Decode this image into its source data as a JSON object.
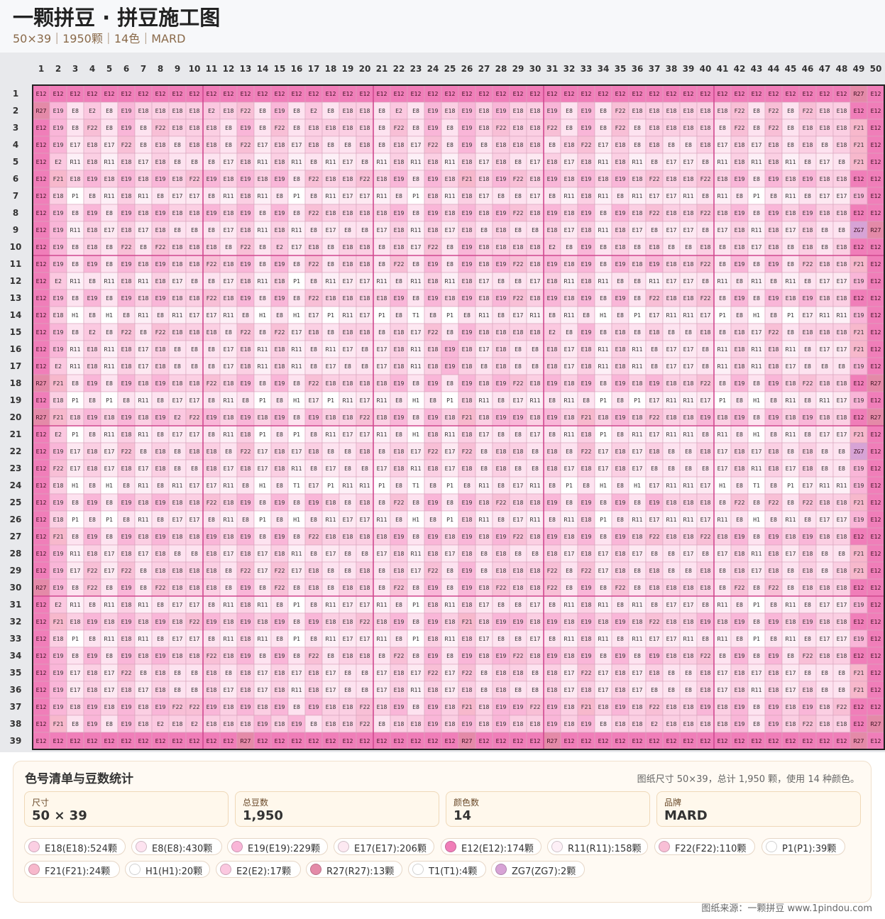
{
  "header": {
    "title": "一颗拼豆 · 拼豆施工图",
    "subtitle": "50×39｜1950颗｜14色｜MARD"
  },
  "grid": {
    "cols": 50,
    "rows": 39,
    "code_colors": {
      "E12": "#f07eb9",
      "E18": "#fbcfe3",
      "E8": "#fde3f0",
      "E19": "#f9b6d8",
      "E17": "#fde9f2",
      "R11": "#fdf0f7",
      "F22": "#f8bfd6",
      "P1": "#ffffff",
      "F21": "#f7b8cc",
      "H1": "#ffffff",
      "E2": "#fbc8e0",
      "R27": "#e48aa8",
      "T1": "#ffffff",
      "ZG7": "#d7a3d6"
    },
    "cells": [
      "E12 E12 E12 E12 E12 E12 E12 E12 E12 E12 E12 E12 E12 E12 E12 E12 E12 E12 E12 E12 E12 E12 E12 E12 E12 E12 E12 E12 E12 E12 E12 E12 E12 E12 E12 E12 E12 E12 E12 E12 E12 E12 E12 E12 E12 E12 E12 E12 R27 E12",
      "R27 E19 E8 E2 E8 E19 E18 E18 E18 E18 E2 E18 F22 E8 E19 E8 E2 E8 E18 E18 E8 E2 E8 E19 E18 E19 E18 E19 E18 E18 E19 E8 E19 E8 F22 E18 E18 E18 E18 E18 E18 F22 E8 F22 E8 F22 E18 E18 E12 E12",
      "E12 E19 E8 F22 E8 E19 E8 F22 E18 E18 E18 E8 E19 E8 F22 E8 E18 E18 E18 E18 E8 F22 E8 E19 E8 E19 E18 F22 E18 E18 F22 E8 E19 E8 F22 E8 E18 E18 E18 E18 E8 F22 E8 F22 E8 E18 E18 E18 F21 E12",
      "E12 E19 E17 E18 E17 F22 E8 E18 E8 E18 E18 E8 F22 E17 E18 E17 E18 E8 E8 E18 E8 E18 E17 F22 E8 E19 E8 E18 E18 E18 E8 E18 F22 E17 E18 E8 E18 E8 E8 E18 E17 E18 E17 E18 E8 E18 E8 E18 F21 E12",
      "E12 E2 R11 E18 R11 E18 E17 E18 E8 E8 E8 E17 E18 R11 E18 R11 E8 R11 E17 E8 R11 E18 R11 E18 R11 E18 E17 E18 E8 E17 E18 E17 E18 R11 E18 R11 E8 E17 E17 E8 R11 E18 R11 E18 R11 E8 E17 E8 F21 E12",
      "E12 F21 E18 E19 E18 E19 E18 E19 E18 F22 E19 E18 E19 E18 E19 E8 F22 E18 E18 F22 E18 E19 E8 E19 E18 F21 E18 E19 F22 E18 E19 E18 E19 E18 E19 E18 F22 E18 E18 F22 E18 E19 E8 E19 E18 E19 E18 E18 E12 E12",
      "E12 E18 P1 E8 R11 E18 R11 E8 E17 E17 E8 R11 E18 R11 E8 P1 E8 R11 E17 E17 R11 E8 P1 E18 R11 E18 E17 E8 E8 E17 E8 R11 E18 R11 E8 R11 E17 E17 R11 E8 R11 E8 P1 E8 R11 E8 E17 E17 E19 E12",
      "E12 E19 E8 E19 E8 E19 E18 E19 E18 E18 E19 E18 E19 E8 E19 E8 F22 E18 E18 E18 E18 E19 E8 E19 E18 E19 E18 E19 F22 E18 E19 E18 E19 E8 E19 E18 F22 E18 E18 F22 E18 E19 E8 E19 E18 E19 E18 E18 E12 E12",
      "E12 E19 R11 E18 E17 E18 E17 E18 E8 E8 E8 E17 E18 R11 E18 R11 E8 E17 E8 E8 E17 E18 R11 E18 E17 E18 E8 E18 E8 E8 E18 E17 E18 R11 E18 E17 E8 E17 E17 E8 E17 E18 R11 E18 E17 E18 E8 E8 ZG7 R27",
      "E12 E19 E8 E18 E8 F22 E8 F22 E18 E18 E18 E8 F22 E8 E2 E17 E18 E8 E18 E18 E8 E18 E17 F22 E8 E19 E18 E18 E18 E18 E2 E8 E19 E8 E18 E8 E18 E8 E8 E18 E8 E18 E17 E18 E8 E18 E8 E18 E12 E12",
      "E12 E19 E8 E19 E8 E19 E18 E19 E18 E18 F22 E18 E19 E8 E19 E8 F22 E8 E18 E18 E8 F22 E8 E19 E8 E19 E18 E19 F22 E18 E19 E18 E19 E8 E19 E18 E19 E18 E18 F22 E8 E19 E8 E19 E8 F22 E18 E18 F21 E12",
      "E12 E2 R11 E8 R11 E18 R11 E18 E17 E8 E8 E17 E18 R11 E18 P1 E8 R11 E17 E17 R11 E8 R11 E18 R11 E18 E17 E8 E8 E17 E18 R11 E18 R11 E8 E8 R11 E17 E17 E8 R11 E8 R11 E8 R11 E8 E17 E17 E19 E12",
      "E12 E19 E8 E19 E8 E19 E18 E19 E18 E18 F22 E18 E19 E8 E19 E8 F22 E18 E18 E18 E18 E19 E8 E19 E18 E19 E18 E19 F22 E18 E19 E18 E19 E8 E19 E8 F22 E18 E18 F22 E8 E19 E8 E19 E18 E19 E18 E18 E12 E12",
      "E12 E18 H1 E8 H1 E8 R11 E8 R11 E17 E17 R11 E8 H1 E8 H1 E17 P1 R11 E17 P1 E8 T1 E8 P1 E8 R11 E8 E17 R11 E8 R11 E8 H1 E8 P1 E17 R11 R11 E17 P1 E8 H1 E8 P1 E17 R11 R11 E19 E12",
      "E12 E19 E8 E2 E8 F22 E8 F22 E18 E18 E18 E8 F22 E8 F22 E17 E18 E8 E18 E18 E8 E18 E17 F22 E8 E19 E18 E18 E18 E18 E2 E8 E19 E8 E18 E8 E18 E8 E8 E18 E8 E18 E17 F22 E8 E18 E18 E18 F21 E12",
      "E12 E19 R11 E18 R11 E18 E17 E18 E8 E8 E8 E17 E18 R11 E18 R11 E8 R11 E17 E8 E17 E18 R11 E18 E19 E18 E17 E18 E8 E8 E18 E17 E18 R11 E18 R11 E8 E17 E17 E8 R11 E18 R11 E18 R11 E8 E17 E17 F21 E12",
      "E12 E2 R11 E18 R11 E18 E17 E18 E8 E8 E8 E17 E18 R11 E18 R11 E8 E17 E8 E8 E17 E18 R11 E18 E19 E18 E8 E18 E8 E8 E18 E17 E18 R11 E18 R11 E8 E17 E17 E8 R11 E18 R11 E18 E17 E8 E8 E8 E19 E12",
      "R27 F21 E8 E19 E8 E19 E18 E19 E18 E18 F22 E18 E19 E8 E19 E8 F22 E18 E18 E18 E18 E19 E8 E19 E8 E19 E18 E19 F22 E18 E19 E18 E19 E8 E19 E18 E19 E18 E18 F22 E8 E19 E8 E19 E18 F22 E18 E18 E12 R27",
      "E12 E18 P1 E8 P1 E8 R11 E8 E17 E17 E8 R11 E8 P1 E8 H1 E17 P1 R11 E17 R11 E8 H1 E8 P1 E18 R11 E8 E17 R11 E8 R11 E8 P1 E8 P1 E17 R11 R11 E17 P1 E8 H1 E8 R11 E8 R11 E17 E19 E12",
      "R27 F21 E18 E19 E18 E19 E18 E19 E2 F22 E19 E18 E19 E18 E19 E8 E19 E18 E18 F22 E18 E19 E8 E19 E18 F21 E18 E19 E19 E18 E19 E18 F21 E18 E19 E18 F22 E18 E18 E19 E18 E19 E8 E19 E18 E19 E18 E18 E12 R27",
      "E12 E2 P1 E8 R11 E18 R11 E8 E17 E17 E8 R11 E18 P1 E8 P1 E8 R11 E17 E17 R11 E8 H1 E18 R11 E18 E17 E8 E8 E17 E8 R11 E18 P1 E8 R11 E17 R11 R11 E8 R11 E8 H1 E8 R11 E8 E17 E17 F21 E12",
      "E12 E19 E17 E18 E17 F22 E8 E18 E8 E18 E18 E8 F22 E17 E18 E17 E18 E8 E8 E18 E8 E18 E17 F22 E17 F22 E8 E18 E18 E8 E18 E8 F22 E17 E18 E17 E18 E8 E8 E18 E17 E18 E17 E18 E8 E18 E8 E8 ZG7 E12",
      "E12 F22 E17 E18 E17 E18 E17 E18 E8 E8 E18 E17 E18 E17 E18 R11 E8 E17 E8 E8 E17 E18 R11 E18 E17 E18 E8 E18 E8 E8 E18 E17 E18 E17 E18 E17 E8 E8 E8 E8 E17 E18 R11 E18 E17 E18 E8 E8 E19 E12",
      "E12 E18 H1 E8 H1 E8 R11 E8 R11 E17 E17 R11 E8 H1 E8 T1 E17 P1 R11 R11 P1 E8 T1 E8 P1 E8 R11 E8 E17 R11 E8 P1 E8 H1 E8 H1 E17 R11 R11 E17 H1 E8 T1 E8 P1 E17 R11 R11 E19 E12",
      "E12 E19 E8 E19 E8 E19 E18 E19 E18 E18 F22 E18 E19 E8 E19 E8 E19 E18 E8 E18 E8 F22 E8 E19 E8 E19 E18 F22 E18 E18 E19 E8 E19 E8 E19 E8 E19 E18 E18 E18 E8 F22 E8 F22 E8 F22 E18 E18 F21 E12",
      "E12 E18 P1 E8 P1 E8 R11 E8 E17 E17 E8 R11 E8 P1 E8 H1 E8 R11 E17 E17 R11 E8 H1 E8 P1 E18 R11 E8 E17 R11 E8 R11 E18 P1 E8 R11 E17 R11 R11 E17 R11 E8 H1 E8 R11 E8 E17 E17 E19 E12",
      "E12 F21 E8 E19 E8 E19 E18 E19 E18 E18 E19 E18 E19 E8 E19 E8 F22 E18 E18 E18 E18 E19 E8 E19 E18 E19 E18 E19 F22 E18 E19 E18 E19 E8 E19 E18 F22 E18 E18 F22 E18 E19 E8 E19 E18 E19 E18 E18 E12 E12",
      "E12 E19 R11 E18 E17 E18 E17 E18 E8 E8 E18 E17 E18 E17 E18 R11 E8 E17 E8 E8 E17 E18 R11 E18 E17 E18 E8 E18 E8 E8 E18 E17 E18 E17 E18 E17 E8 E8 E17 E8 E17 E18 R11 E18 E17 E18 E8 E8 F21 E12",
      "E12 E19 E17 F22 E17 F22 E8 E18 E18 E18 E18 E8 F22 E17 F22 E17 E18 E8 E8 E18 E8 E18 E17 F22 E8 E19 E8 E18 E18 E18 F22 E8 F22 E17 E18 E8 E18 E8 E8 E18 E8 E18 E17 E18 E8 E18 E8 E18 F21 E12",
      "R27 E19 E8 F22 E8 E19 E8 F22 E18 E18 E18 E8 E19 E8 F22 E8 E18 E8 E18 E18 E8 F22 E8 E19 E8 E19 E18 F22 E18 E18 F22 E8 E19 E8 F22 E8 E18 E18 E18 E18 E8 F22 E8 F22 E8 E18 E18 E18 E12 E12",
      "E12 E2 R11 E8 R11 E18 R11 E8 E17 E17 E8 R11 E18 R11 E8 P1 E8 R11 E17 E17 R11 E8 P1 E18 R11 E18 E17 E8 E8 E17 E8 R11 E18 R11 E8 R11 E8 E17 E17 E8 R11 E8 P1 E8 R11 E8 E17 E17 E19 E12",
      "E12 F21 E18 E19 E18 E19 E18 E19 E18 F22 E19 E18 E19 E18 E19 E8 E19 E18 E18 F22 E18 E19 E8 E19 E18 F21 E18 E19 E19 E18 E19 E18 E19 E18 E19 E18 F22 E18 E18 E19 E18 E19 E8 E19 E18 E19 E18 E18 E12 E12",
      "E12 E18 P1 E8 R11 E18 R11 E8 E17 E17 E8 R11 E18 R11 E8 P1 E8 R11 E17 E17 R11 E8 P1 E18 R11 E18 E17 E8 E8 E17 E8 R11 E18 R11 E8 R11 E17 E17 R11 E8 R11 E8 P1 E8 R11 E8 E17 E17 E19 E12",
      "E12 E19 E8 E19 E8 E19 E18 E19 E18 E18 F22 E18 E19 E8 E19 E8 F22 E8 E18 E18 E8 F22 E8 E19 E8 E19 E18 E19 F22 E18 E19 E18 E19 E8 E19 E8 E19 E18 E18 F22 E8 E19 E8 E19 E8 F22 E18 E18 E12 E12",
      "E12 E19 E17 E18 E17 F22 E8 E18 E8 E8 E18 E8 E18 E17 E18 E17 E18 E17 E8 E8 E17 E18 E17 F22 E17 F22 E8 E18 E18 E8 E18 E17 F22 E17 E18 E17 E18 E8 E8 E18 E17 E18 E17 E18 E17 E8 E8 E8 F21 E12",
      "E12 E19 E17 E18 E17 E18 E17 E18 E8 E8 E18 E17 E18 E17 E18 R11 E18 E17 E8 E8 E17 E18 R11 E18 E17 E18 E8 E18 E8 E8 E18 E17 E18 E17 E18 E17 E8 E8 E8 E18 E17 E18 R11 E18 E17 E18 E8 E8 F21 E12",
      "E12 E19 E18 E19 E18 E19 E18 E19 F22 F22 E19 E18 E19 E18 E19 E8 E19 E18 E18 F22 E18 E19 E8 E19 E18 F21 E18 E19 E19 F22 E19 E18 F21 E18 E19 E18 F22 E18 E18 E19 E18 E19 E8 E19 E18 E19 E18 F22 E12 E12",
      "E12 F21 E8 E19 E8 E19 E18 E2 E18 E2 E18 E18 E18 E19 E18 E19 E8 E18 E18 F22 E8 E18 E18 E19 E18 E19 E18 E19 E18 E18 E19 E18 E19 E8 E18 E18 E2 E18 E18 E18 E18 E19 E8 E19 E18 F22 E18 E18 E12 R27",
      "E12 E12 E12 E12 E12 E12 E12 E12 E12 E12 E12 E12 R27 E12 E12 E12 E12 E12 E12 E12 E12 E12 E12 E12 E12 R27 E12 E12 E12 E12 R27 E12 E12 E12 E12 E12 E12 E12 E12 E12 E12 E12 E12 E12 E12 E12 E12 E12 R27 E12"
    ]
  },
  "legend": {
    "title": "色号清单与豆数统计",
    "summary": "图纸尺寸 50×39，总计 1,950 颗，使用 14 种颜色。",
    "stats": [
      {
        "label": "尺寸",
        "value": "50 × 39"
      },
      {
        "label": "总豆数",
        "value": "1,950"
      },
      {
        "label": "颜色数",
        "value": "14"
      },
      {
        "label": "品牌",
        "value": "MARD"
      }
    ],
    "chips": [
      {
        "text": "E18(E18):524颗",
        "color": "#fbcfe3"
      },
      {
        "text": "E8(E8):430颗",
        "color": "#fde3f0"
      },
      {
        "text": "E19(E19):229颗",
        "color": "#f9b6d8"
      },
      {
        "text": "E17(E17):206颗",
        "color": "#fde9f2"
      },
      {
        "text": "E12(E12):174颗",
        "color": "#f07eb9"
      },
      {
        "text": "R11(R11):158颗",
        "color": "#fdf0f7"
      },
      {
        "text": "F22(F22):110颗",
        "color": "#f8bfd6"
      },
      {
        "text": "P1(P1):39颗",
        "color": "#ffffff"
      },
      {
        "text": "F21(F21):24颗",
        "color": "#f7b8cc"
      },
      {
        "text": "H1(H1):20颗",
        "color": "#ffffff"
      },
      {
        "text": "E2(E2):17颗",
        "color": "#fbc8e0"
      },
      {
        "text": "R27(R27):13颗",
        "color": "#e48aa8"
      },
      {
        "text": "T1(T1):4颗",
        "color": "#ffffff"
      },
      {
        "text": "ZG7(ZG7):2颗",
        "color": "#d7a3d6"
      }
    ]
  },
  "footer": {
    "source": "图纸来源：一颗拼豆 www.1pindou.com"
  }
}
